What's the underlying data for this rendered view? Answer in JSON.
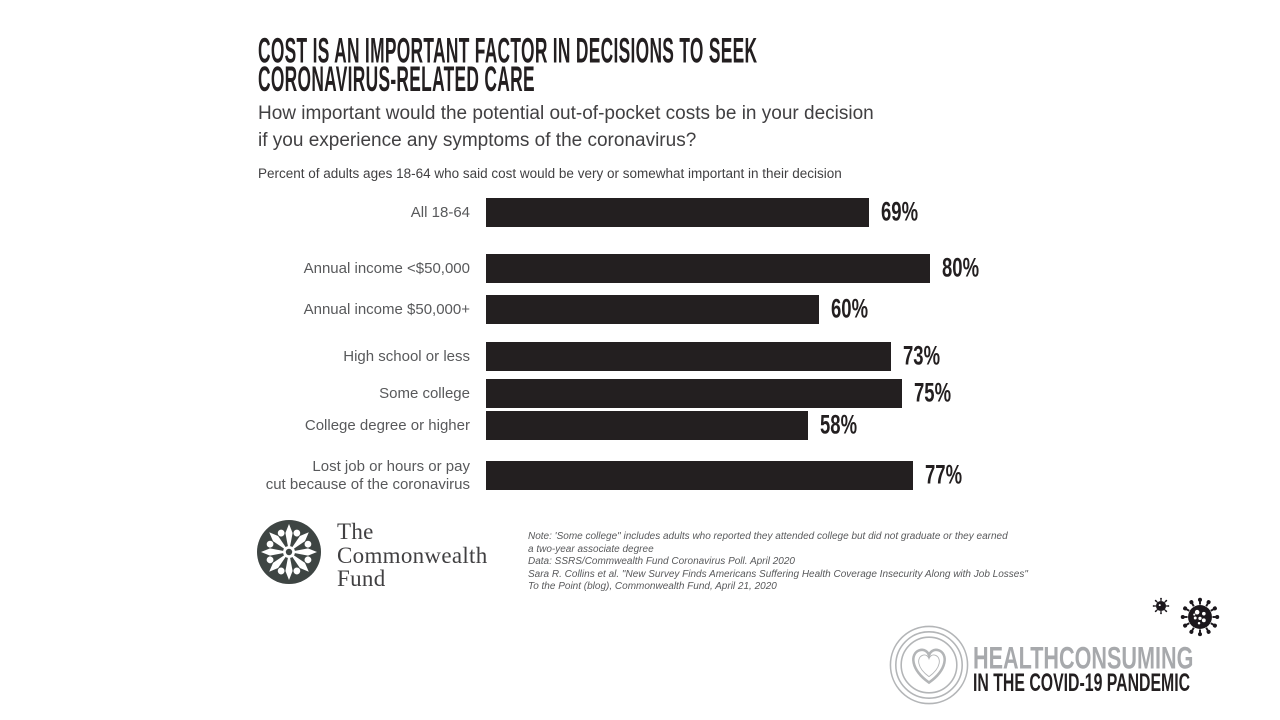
{
  "header": {
    "title_line1": "COST IS AN IMPORTANT FACTOR IN DECISIONS TO SEEK",
    "title_line2": "CORONAVIRUS-RELATED CARE",
    "subtitle_line1": "How important would the potential out-of-pocket costs be in your decision",
    "subtitle_line2": "if you experience any symptoms of the coronavirus?",
    "descriptor": "Percent of adults ages 18-64 who said cost would be very or somewhat important in their decision"
  },
  "chart_data": {
    "type": "bar",
    "orientation": "horizontal",
    "title": "Percent of adults ages 18-64 who said cost would be very or somewhat important in their decision",
    "categories": [
      "All 18-64",
      "Annual income <$50,000",
      "Annual income $50,000+",
      "High school or less",
      "Some college",
      "College degree or higher",
      "Lost job or hours or pay cut because of the coronavirus"
    ],
    "values": [
      69,
      80,
      60,
      73,
      75,
      58,
      77
    ],
    "value_labels": [
      "69%",
      "80%",
      "60%",
      "73%",
      "75%",
      "58%",
      "77%"
    ],
    "label_line_breaks": {
      "6": [
        "Lost job or hours or pay",
        "cut because of the coronavirus"
      ]
    },
    "groups": [
      [
        0
      ],
      [
        1,
        2
      ],
      [
        3,
        4,
        5
      ],
      [
        6
      ]
    ],
    "unit": "percent",
    "xlim": [
      0,
      100
    ],
    "grid": false,
    "legend": false,
    "bar_color": "#231f20"
  },
  "footer": {
    "commonwealth_logo_lines": [
      "The",
      "Commonwealth",
      "Fund"
    ],
    "notes": [
      "Note: 'Some college\" includes adults who reported they attended college but did not graduate or they earned",
      "a two-year associate degree",
      "Data: SSRS/Commwealth Fund Coronavirus Poll. April 2020",
      "Sara R. Collins et al. \"New Survey Finds Americans Suffering Health Coverage Insecurity Along with Job Losses\"",
      "To the Point (blog), Commonwealth Fund, April 21, 2020"
    ]
  },
  "branding": {
    "healthconsuming_line1": "HEALTHCONSUMING",
    "healthconsuming_line2": "IN THE COVID-19 PANDEMIC"
  },
  "colors": {
    "bar": "#231f20",
    "title_text": "#231f20",
    "body_text": "#414042",
    "label_text": "#58595b",
    "notes_text": "#58595b",
    "brand_gray": "#a7a9ac",
    "logo_ring_gray": "#b3b5b7",
    "commonwealth_mark": "#3e4543",
    "virus_black": "#1b171c",
    "background": "#ffffff"
  }
}
